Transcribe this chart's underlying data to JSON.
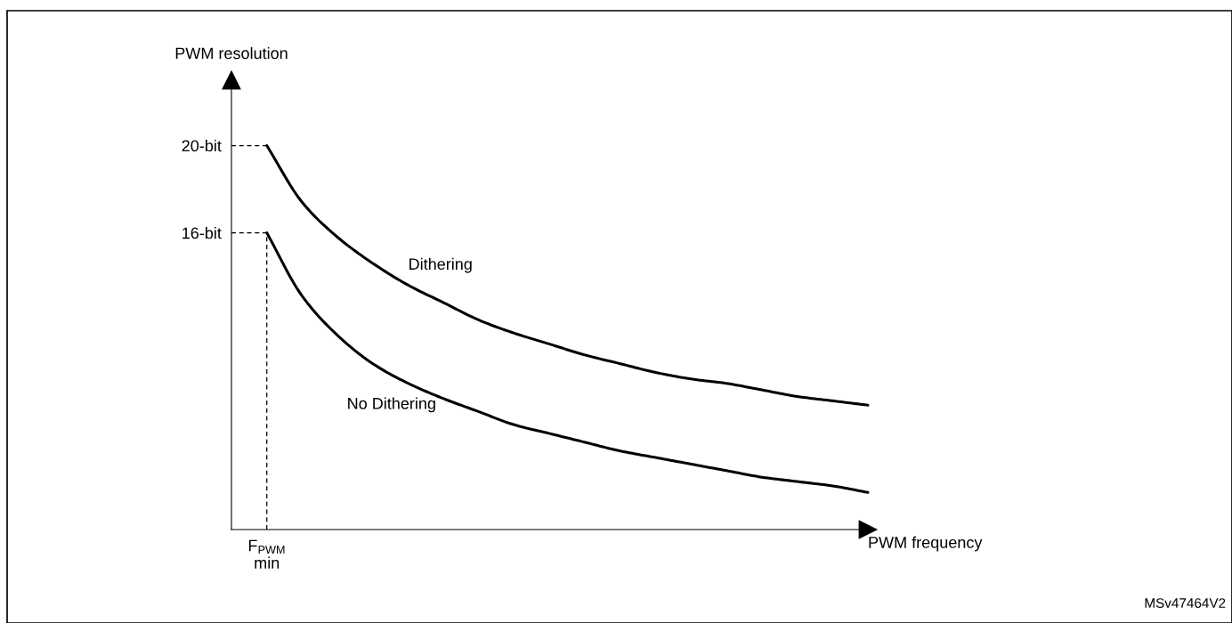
{
  "chart_data": {
    "type": "line",
    "xlabel": "PWM frequency",
    "ylabel": "PWM resolution",
    "categories": [
      "F$_{PWM}$\nmin",
      null,
      null,
      null,
      null,
      null,
      null,
      null,
      null,
      null,
      null,
      null,
      null,
      null,
      null,
      null,
      null,
      null
    ],
    "series": [
      {
        "name": "Dithering",
        "color": "#000000",
        "values": [
          20.0,
          17.4,
          15.8,
          14.6,
          13.6,
          12.8,
          12.0,
          11.4,
          10.9,
          10.4,
          10.0,
          9.6,
          9.3,
          9.1,
          8.8,
          8.5,
          8.3,
          8.1
        ]
      },
      {
        "name": "No Dithering",
        "color": "#000000",
        "values": [
          16.0,
          13.1,
          11.3,
          10.0,
          9.1,
          8.4,
          7.8,
          7.2,
          6.8,
          6.4,
          6.0,
          5.7,
          5.4,
          5.1,
          4.8,
          4.6,
          4.4,
          4.1
        ]
      }
    ],
    "ylim": [
      2.4,
      23
    ],
    "yticks": [
      {
        "value": 16,
        "label": "16-bit"
      },
      {
        "value": 20,
        "label": "20-bit"
      }
    ],
    "marker": "none",
    "line_style": "solid",
    "grid": false,
    "legend": false,
    "annotations": [
      "MSv47464V2"
    ]
  }
}
